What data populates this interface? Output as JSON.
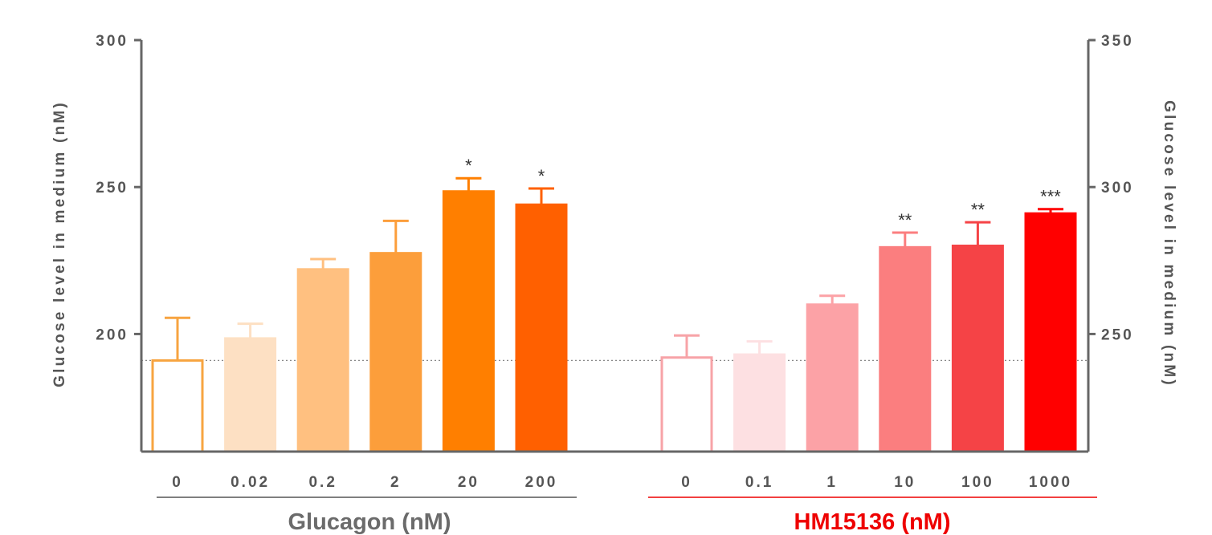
{
  "chart_data": {
    "type": "bar",
    "left_axis": {
      "label": "Glucose level in medium (nM)",
      "ticks": [
        200,
        250,
        300
      ],
      "range": [
        160,
        300
      ]
    },
    "right_axis": {
      "label": "Glucose level in medium (nM)",
      "ticks": [
        250,
        300,
        350
      ],
      "range": [
        210,
        350
      ]
    },
    "reference_line": {
      "left_value": 191,
      "style": "dotted",
      "color": "#888888"
    },
    "groups": [
      {
        "name": "Glucagon (nM)",
        "axis": "left",
        "label_color": "#6b6b6b",
        "underline_color": "#555555",
        "bars": [
          {
            "label": "0",
            "value": 191,
            "error": 14.5,
            "fill": "#ffffff",
            "stroke": "#f7a440",
            "sig": ""
          },
          {
            "label": "0.02",
            "value": 198.5,
            "error": 5,
            "fill": "#fde0c3",
            "stroke": "#fde0c3",
            "sig": ""
          },
          {
            "label": "0.2",
            "value": 222,
            "error": 3.5,
            "fill": "#ffc080",
            "stroke": "#ffc080",
            "sig": ""
          },
          {
            "label": "2",
            "value": 227.5,
            "error": 11,
            "fill": "#fc9e3b",
            "stroke": "#fc9e3b",
            "sig": ""
          },
          {
            "label": "20",
            "value": 248.5,
            "error": 4.5,
            "fill": "#ff7f00",
            "stroke": "#ff7f00",
            "sig": "*"
          },
          {
            "label": "200",
            "value": 244,
            "error": 5.5,
            "fill": "#ff6000",
            "stroke": "#ff6000",
            "sig": "*"
          }
        ]
      },
      {
        "name": "HM15136 (nM)",
        "axis": "right",
        "label_color": "#ee0000",
        "underline_color": "#ee0000",
        "bars": [
          {
            "label": "0",
            "value": 242,
            "error": 7.5,
            "fill": "#ffffff",
            "stroke": "#f7a3a7",
            "sig": ""
          },
          {
            "label": "0.1",
            "value": 243,
            "error": 4.5,
            "fill": "#fde0e2",
            "stroke": "#fde0e2",
            "sig": ""
          },
          {
            "label": "1",
            "value": 260,
            "error": 3,
            "fill": "#fca2a6",
            "stroke": "#fca2a6",
            "sig": ""
          },
          {
            "label": "10",
            "value": 279.5,
            "error": 5,
            "fill": "#fb7e7f",
            "stroke": "#fb7e7f",
            "sig": "**"
          },
          {
            "label": "100",
            "value": 280,
            "error": 8,
            "fill": "#f54346",
            "stroke": "#f54346",
            "sig": "**"
          },
          {
            "label": "1000",
            "value": 291,
            "error": 1.5,
            "fill": "#ff0000",
            "stroke": "#ff0000",
            "sig": "***"
          }
        ]
      }
    ]
  }
}
